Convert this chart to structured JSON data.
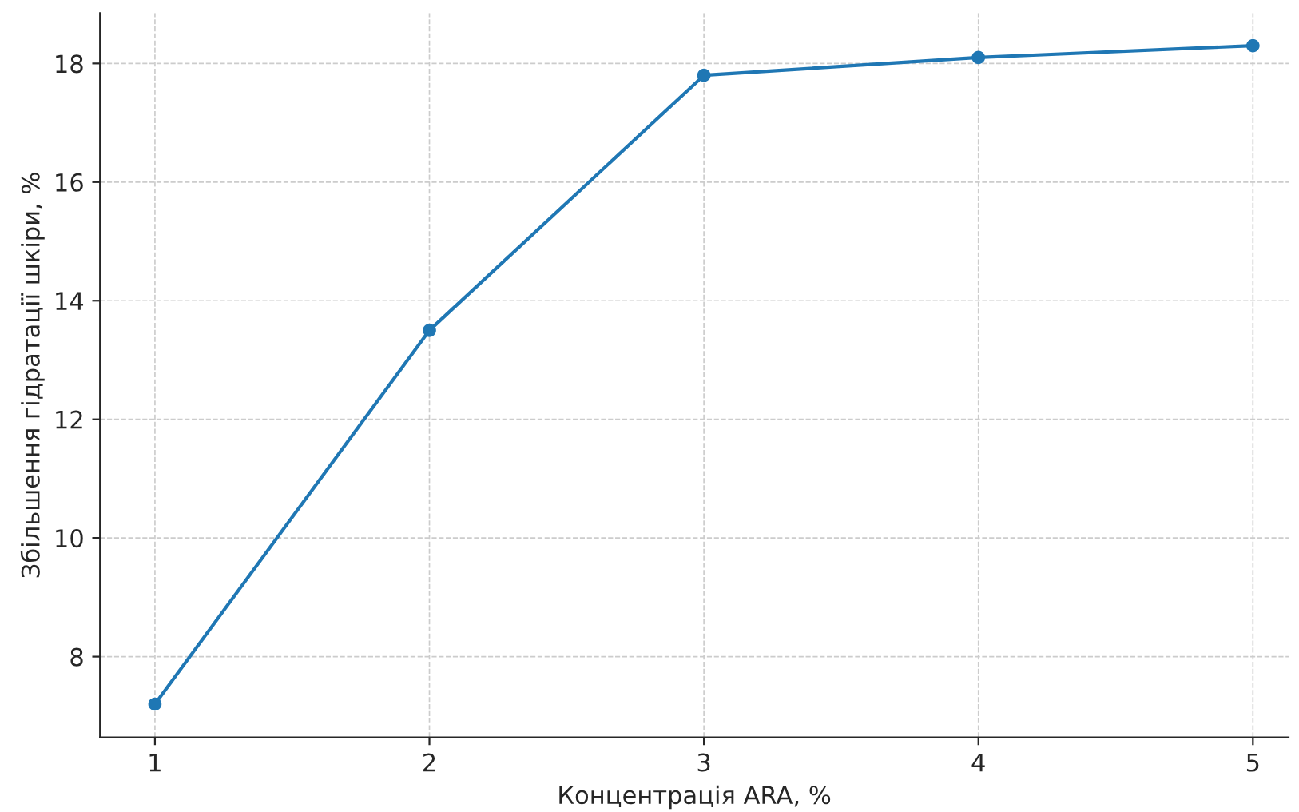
{
  "chart_data": {
    "type": "line",
    "xlabel": "Концентрація ARA, %",
    "ylabel": "Збільшення гідратації шкіри, %",
    "x": [
      1,
      2,
      3,
      4,
      5
    ],
    "series": [
      {
        "color": "#1f77b4",
        "values": [
          7.2,
          13.5,
          17.8,
          18.1,
          18.3
        ]
      }
    ],
    "xlim": [
      0.8,
      5.13
    ],
    "ylim": [
      6.64,
      18.85
    ],
    "xticks": [
      1,
      2,
      3,
      4,
      5
    ],
    "yticks": [
      8,
      10,
      12,
      14,
      16,
      18
    ],
    "grid": true,
    "marker": "circle",
    "line_style": "solid",
    "legend": false
  }
}
